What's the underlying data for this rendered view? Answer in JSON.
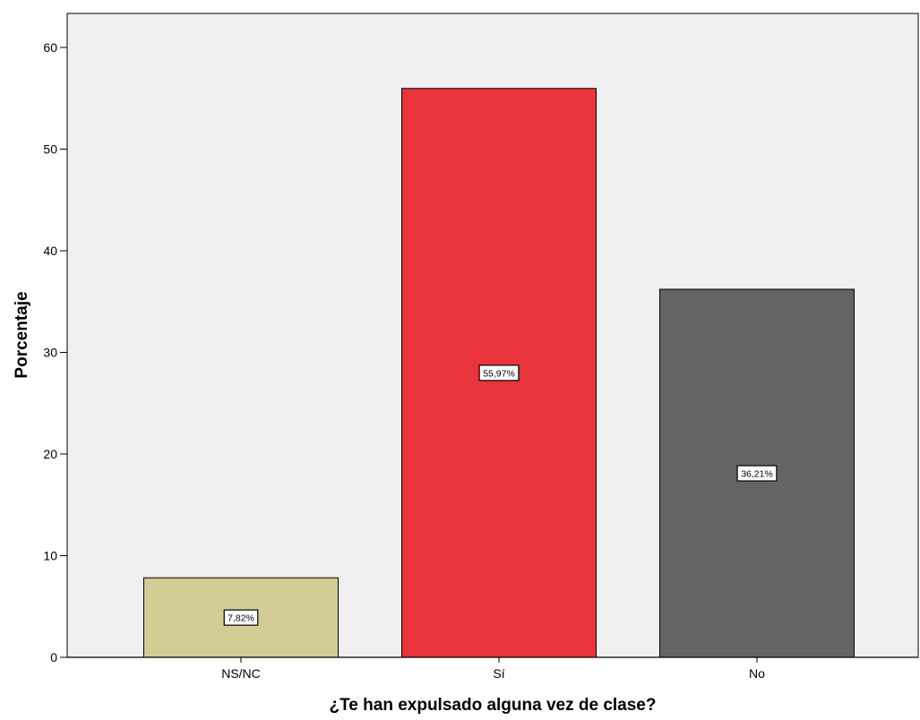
{
  "chart_data": {
    "type": "bar",
    "title": "",
    "xlabel": "¿Te han expulsado alguna vez de clase?",
    "ylabel": "Porcentaje",
    "categories": [
      "NS/NC",
      "Sí",
      "No"
    ],
    "values": [
      7.82,
      55.97,
      36.21
    ],
    "data_labels": [
      "7,82%",
      "55,97%",
      "36,21%"
    ],
    "bar_colors": [
      "#d2cc95",
      "#e8343a",
      "#646464"
    ],
    "ylim": [
      0,
      62
    ],
    "yticks": [
      0,
      10,
      20,
      30,
      40,
      50,
      60
    ],
    "ytick_labels": [
      "0",
      "10",
      "20",
      "30",
      "40",
      "50",
      "60"
    ],
    "grid": false,
    "legend": "none",
    "plot_background": "#f0f0f0"
  }
}
